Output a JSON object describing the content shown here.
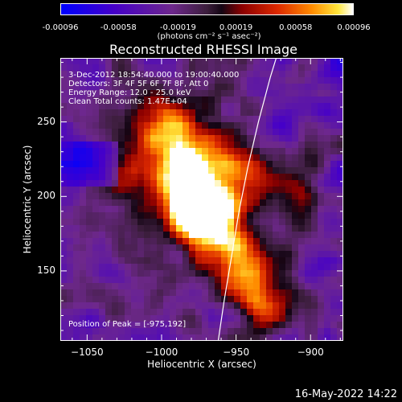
{
  "colorbar": {
    "tick_labels": [
      "-0.00096",
      "-0.00058",
      "-0.00019",
      "0.00019",
      "0.00058",
      "0.00096"
    ],
    "ticks": [
      -0.00096,
      -0.00058,
      -0.00019,
      0.00019,
      0.00058,
      0.00096
    ],
    "unit_label": "(photons cm⁻² s⁻¹ asec⁻²)",
    "colormap": "blue-purple-red-orange-yellow-white"
  },
  "chart_data": {
    "type": "heatmap",
    "title": "Reconstructed RHESSI Image",
    "xlabel": "Heliocentric X (arcsec)",
    "ylabel": "Heliocentric Y (arcsec)",
    "xlim": [
      -1068,
      -878
    ],
    "ylim": [
      103,
      293
    ],
    "x_ticks": [
      -1050,
      -1000,
      -950,
      -900
    ],
    "x_tick_labels": [
      "−1050",
      "−1000",
      "−950",
      "−900"
    ],
    "y_ticks": [
      150,
      200,
      250
    ],
    "y_tick_labels": [
      "150",
      "200",
      "250"
    ],
    "peak": {
      "x": -975,
      "y": 192
    },
    "limb_curve": [
      {
        "x": -962,
        "y": 103
      },
      {
        "x": -958,
        "y": 130
      },
      {
        "x": -953,
        "y": 160
      },
      {
        "x": -948,
        "y": 190
      },
      {
        "x": -942,
        "y": 220
      },
      {
        "x": -935,
        "y": 250
      },
      {
        "x": -927,
        "y": 280
      },
      {
        "x": -923,
        "y": 293
      }
    ]
  },
  "annotations": {
    "time_range": "3-Dec-2012 18:54:40.000 to 19:00:40.000",
    "detectors": "Detectors: 3F 4F 5F 6F 7F 8F, Att 0",
    "energy": "Energy Range: 12.0 - 25.0 keV",
    "clean": "Clean    Total counts: 1.47E+04",
    "peak_text": "Position of Peak = [-975,192]"
  },
  "timestamp": "16-May-2022 14:22",
  "colors": {
    "background": "#000000",
    "text": "#ffffff",
    "limb": "#ffffff"
  }
}
